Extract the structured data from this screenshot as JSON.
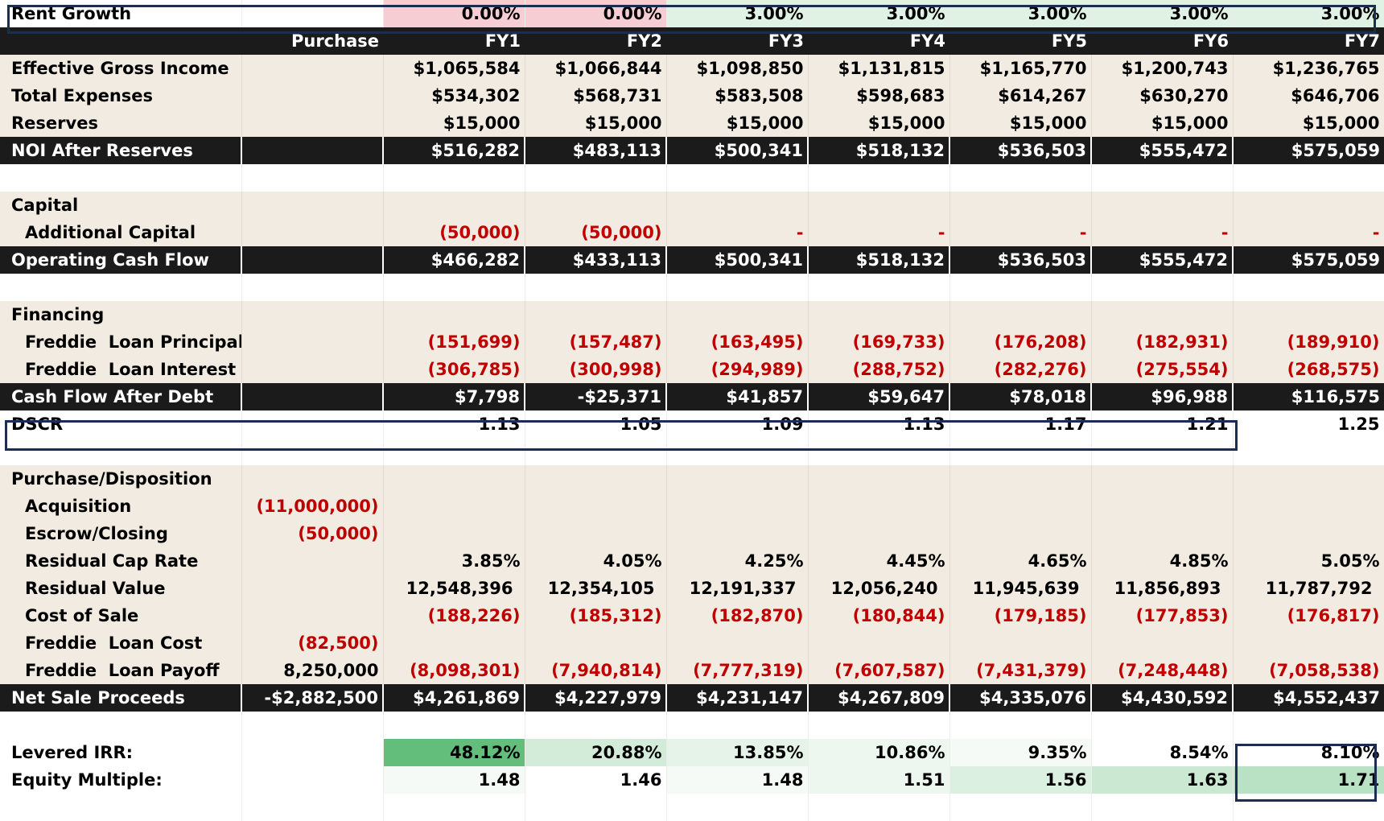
{
  "rent_growth": {
    "label": "Rent Growth",
    "values": [
      "0.00%",
      "0.00%",
      "3.00%",
      "3.00%",
      "3.00%",
      "3.00%",
      "3.00%"
    ]
  },
  "header": {
    "purchase": "Purchase",
    "years": [
      "FY1",
      "FY2",
      "FY3",
      "FY4",
      "FY5",
      "FY6",
      "FY7"
    ]
  },
  "income": {
    "egi": {
      "label": "Effective Gross Income",
      "values": [
        "$1,065,584",
        "$1,066,844",
        "$1,098,850",
        "$1,131,815",
        "$1,165,770",
        "$1,200,743",
        "$1,236,765"
      ]
    },
    "expenses": {
      "label": "Total Expenses",
      "values": [
        "$534,302",
        "$568,731",
        "$583,508",
        "$598,683",
        "$614,267",
        "$630,270",
        "$646,706"
      ]
    },
    "reserves": {
      "label": "Reserves",
      "values": [
        "$15,000",
        "$15,000",
        "$15,000",
        "$15,000",
        "$15,000",
        "$15,000",
        "$15,000"
      ]
    },
    "noi": {
      "label": "NOI After Reserves",
      "values": [
        "$516,282",
        "$483,113",
        "$500,341",
        "$518,132",
        "$536,503",
        "$555,472",
        "$575,059"
      ]
    }
  },
  "capital": {
    "section": "Capital",
    "additional": {
      "label": "Additional Capital",
      "values": [
        "(50,000)",
        "(50,000)",
        "-",
        "-",
        "-",
        "-",
        "-"
      ]
    },
    "ocf": {
      "label": "Operating Cash Flow",
      "values": [
        "$466,282",
        "$433,113",
        "$500,341",
        "$518,132",
        "$536,503",
        "$555,472",
        "$575,059"
      ]
    }
  },
  "financing": {
    "section": "Financing",
    "principal": {
      "label": "Freddie  Loan Principal",
      "values": [
        "(151,699)",
        "(157,487)",
        "(163,495)",
        "(169,733)",
        "(176,208)",
        "(182,931)",
        "(189,910)"
      ]
    },
    "interest": {
      "label": "Freddie  Loan Interest",
      "values": [
        "(306,785)",
        "(300,998)",
        "(294,989)",
        "(288,752)",
        "(282,276)",
        "(275,554)",
        "(268,575)"
      ]
    },
    "cfad": {
      "label": "Cash Flow After Debt",
      "values": [
        "$7,798",
        "-$25,371",
        "$41,857",
        "$59,647",
        "$78,018",
        "$96,988",
        "$116,575"
      ]
    }
  },
  "dscr": {
    "label": "DSCR",
    "values": [
      "1.13",
      "1.05",
      "1.09",
      "1.13",
      "1.17",
      "1.21",
      "1.25"
    ]
  },
  "disposition": {
    "section": "Purchase/Disposition",
    "acquisition": {
      "label": "Acquisition",
      "purchase": "(11,000,000)"
    },
    "escrow": {
      "label": "Escrow/Closing",
      "purchase": "(50,000)"
    },
    "cap_rate": {
      "label": "Residual Cap Rate",
      "values": [
        "3.85%",
        "4.05%",
        "4.25%",
        "4.45%",
        "4.65%",
        "4.85%",
        "5.05%"
      ]
    },
    "residual_value": {
      "label": "Residual Value",
      "values": [
        "12,548,396",
        "12,354,105",
        "12,191,337",
        "12,056,240",
        "11,945,639",
        "11,856,893",
        "11,787,792"
      ]
    },
    "cost_of_sale": {
      "label": "Cost of Sale",
      "values": [
        "(188,226)",
        "(185,312)",
        "(182,870)",
        "(180,844)",
        "(179,185)",
        "(177,853)",
        "(176,817)"
      ]
    },
    "loan_cost": {
      "label": "Freddie  Loan Cost",
      "purchase": "(82,500)"
    },
    "loan_payoff": {
      "label": "Freddie  Loan Payoff",
      "purchase": "8,250,000",
      "values": [
        "(8,098,301)",
        "(7,940,814)",
        "(7,777,319)",
        "(7,607,587)",
        "(7,431,379)",
        "(7,248,448)",
        "(7,058,538)"
      ]
    },
    "net_sale": {
      "label": "Net Sale Proceeds",
      "purchase": "-$2,882,500",
      "values": [
        "$4,261,869",
        "$4,227,979",
        "$4,231,147",
        "$4,267,809",
        "$4,335,076",
        "$4,430,592",
        "$4,552,437"
      ]
    }
  },
  "returns": {
    "irr": {
      "label": "Levered IRR:",
      "values": [
        "48.12%",
        "20.88%",
        "13.85%",
        "10.86%",
        "9.35%",
        "8.54%",
        "8.10%"
      ]
    },
    "multiple": {
      "label": "Equity Multiple:",
      "values": [
        "1.48",
        "1.46",
        "1.48",
        "1.51",
        "1.56",
        "1.63",
        "1.71"
      ]
    }
  },
  "colors": {
    "dark_row": "#1b1b1b",
    "beige": "#f2ebe1",
    "negative": "#c00000",
    "highlight_border": "#1c2d52"
  }
}
